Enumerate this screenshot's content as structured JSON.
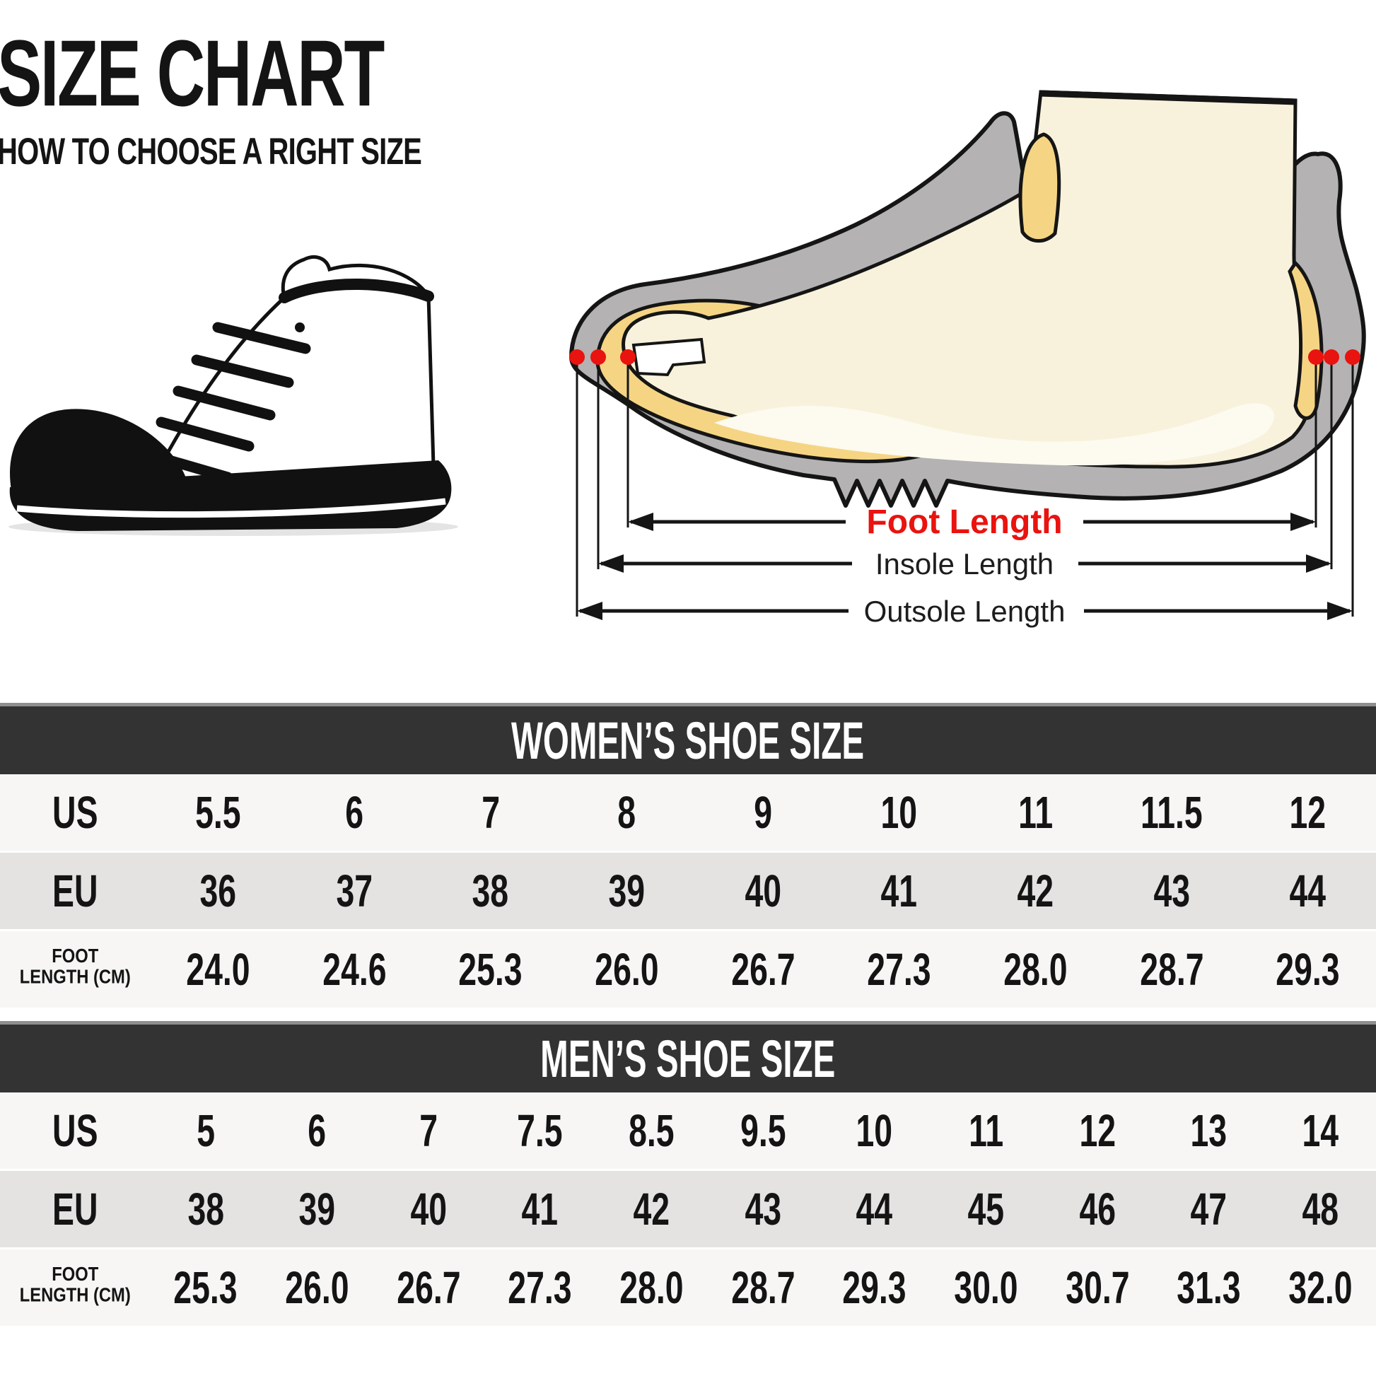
{
  "title": {
    "main": "SIZE CHART",
    "subtitle": "HOW TO CHOOSE A RIGHT SIZE"
  },
  "diagram": {
    "foot_length_label": "Foot Length",
    "insole_length_label": "Insole Length",
    "outsole_length_label": "Outsole Length",
    "accent_color": "#e9130f"
  },
  "tables": [
    {
      "id": "women",
      "header": "WOMEN’S SHOE SIZE",
      "rows": [
        {
          "label": "US",
          "values": [
            "5.5",
            "6",
            "7",
            "8",
            "9",
            "10",
            "11",
            "11.5",
            "12"
          ]
        },
        {
          "label": "EU",
          "values": [
            "36",
            "37",
            "38",
            "39",
            "40",
            "41",
            "42",
            "43",
            "44"
          ]
        },
        {
          "label": "FOOT\nLENGTH (CM)",
          "values": [
            "24.0",
            "24.6",
            "25.3",
            "26.0",
            "26.7",
            "27.3",
            "28.0",
            "28.7",
            "29.3"
          ]
        }
      ]
    },
    {
      "id": "men",
      "header": "MEN’S SHOE SIZE",
      "rows": [
        {
          "label": "US",
          "values": [
            "5",
            "6",
            "7",
            "7.5",
            "8.5",
            "9.5",
            "10",
            "11",
            "12",
            "13",
            "14"
          ]
        },
        {
          "label": "EU",
          "values": [
            "38",
            "39",
            "40",
            "41",
            "42",
            "43",
            "44",
            "45",
            "46",
            "47",
            "48"
          ]
        },
        {
          "label": "FOOT\nLENGTH (CM)",
          "values": [
            "25.3",
            "26.0",
            "26.7",
            "27.3",
            "28.0",
            "28.7",
            "29.3",
            "30.0",
            "30.7",
            "31.3",
            "32.0"
          ]
        }
      ]
    }
  ]
}
